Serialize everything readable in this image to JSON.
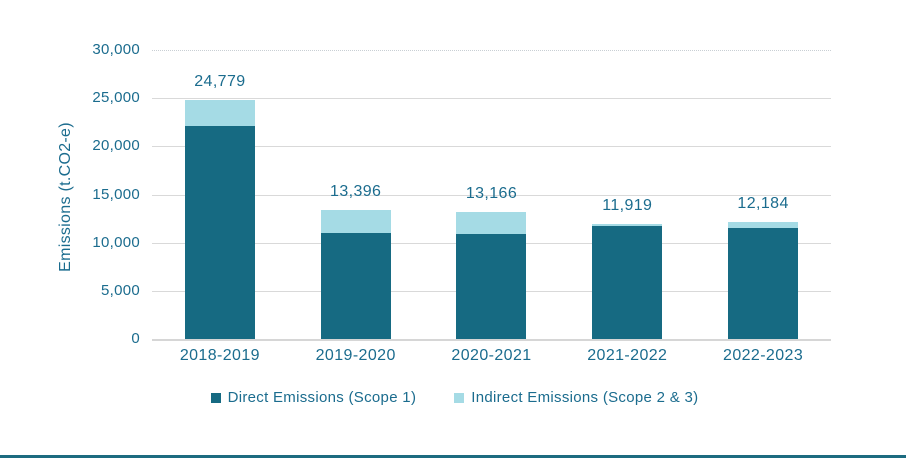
{
  "chart": {
    "ylabel": "Emissions (t.CO2-e)"
  },
  "chart_data": {
    "type": "bar",
    "stacked": true,
    "categories": [
      "2018-2019",
      "2019-2020",
      "2020-2021",
      "2021-2022",
      "2022-2023"
    ],
    "series": [
      {
        "name": "Direct Emissions (Scope 1)",
        "color": "#166a82",
        "values": [
          22150,
          11050,
          10900,
          11680,
          11550
        ]
      },
      {
        "name": "Indirect Emissions (Scope 2 & 3)",
        "color": "#a5dbe5",
        "values": [
          2629,
          2346,
          2266,
          239,
          634
        ]
      }
    ],
    "totals": [
      24779,
      13396,
      13166,
      11919,
      12184
    ],
    "total_labels": [
      "24,779",
      "13,396",
      "13,166",
      "11,919",
      "12,184"
    ],
    "title": "",
    "xlabel": "",
    "ylabel": "Emissions (t.CO2-e)",
    "ylim": [
      0,
      30000
    ],
    "yticks": [
      0,
      5000,
      10000,
      15000,
      20000,
      25000,
      30000
    ],
    "ytick_labels": [
      "0",
      "5,000",
      "10,000",
      "15,000",
      "20,000",
      "25,000",
      "30,000"
    ],
    "grid": true,
    "legend_position": "bottom"
  },
  "colors": {
    "background": "#ffffff",
    "direct_series": "#166a82",
    "indirect_series": "#a5dbe5",
    "text": "#1b6c8e",
    "gridline": "#d9d9d9",
    "bottom_rule": "#1c6b80"
  }
}
